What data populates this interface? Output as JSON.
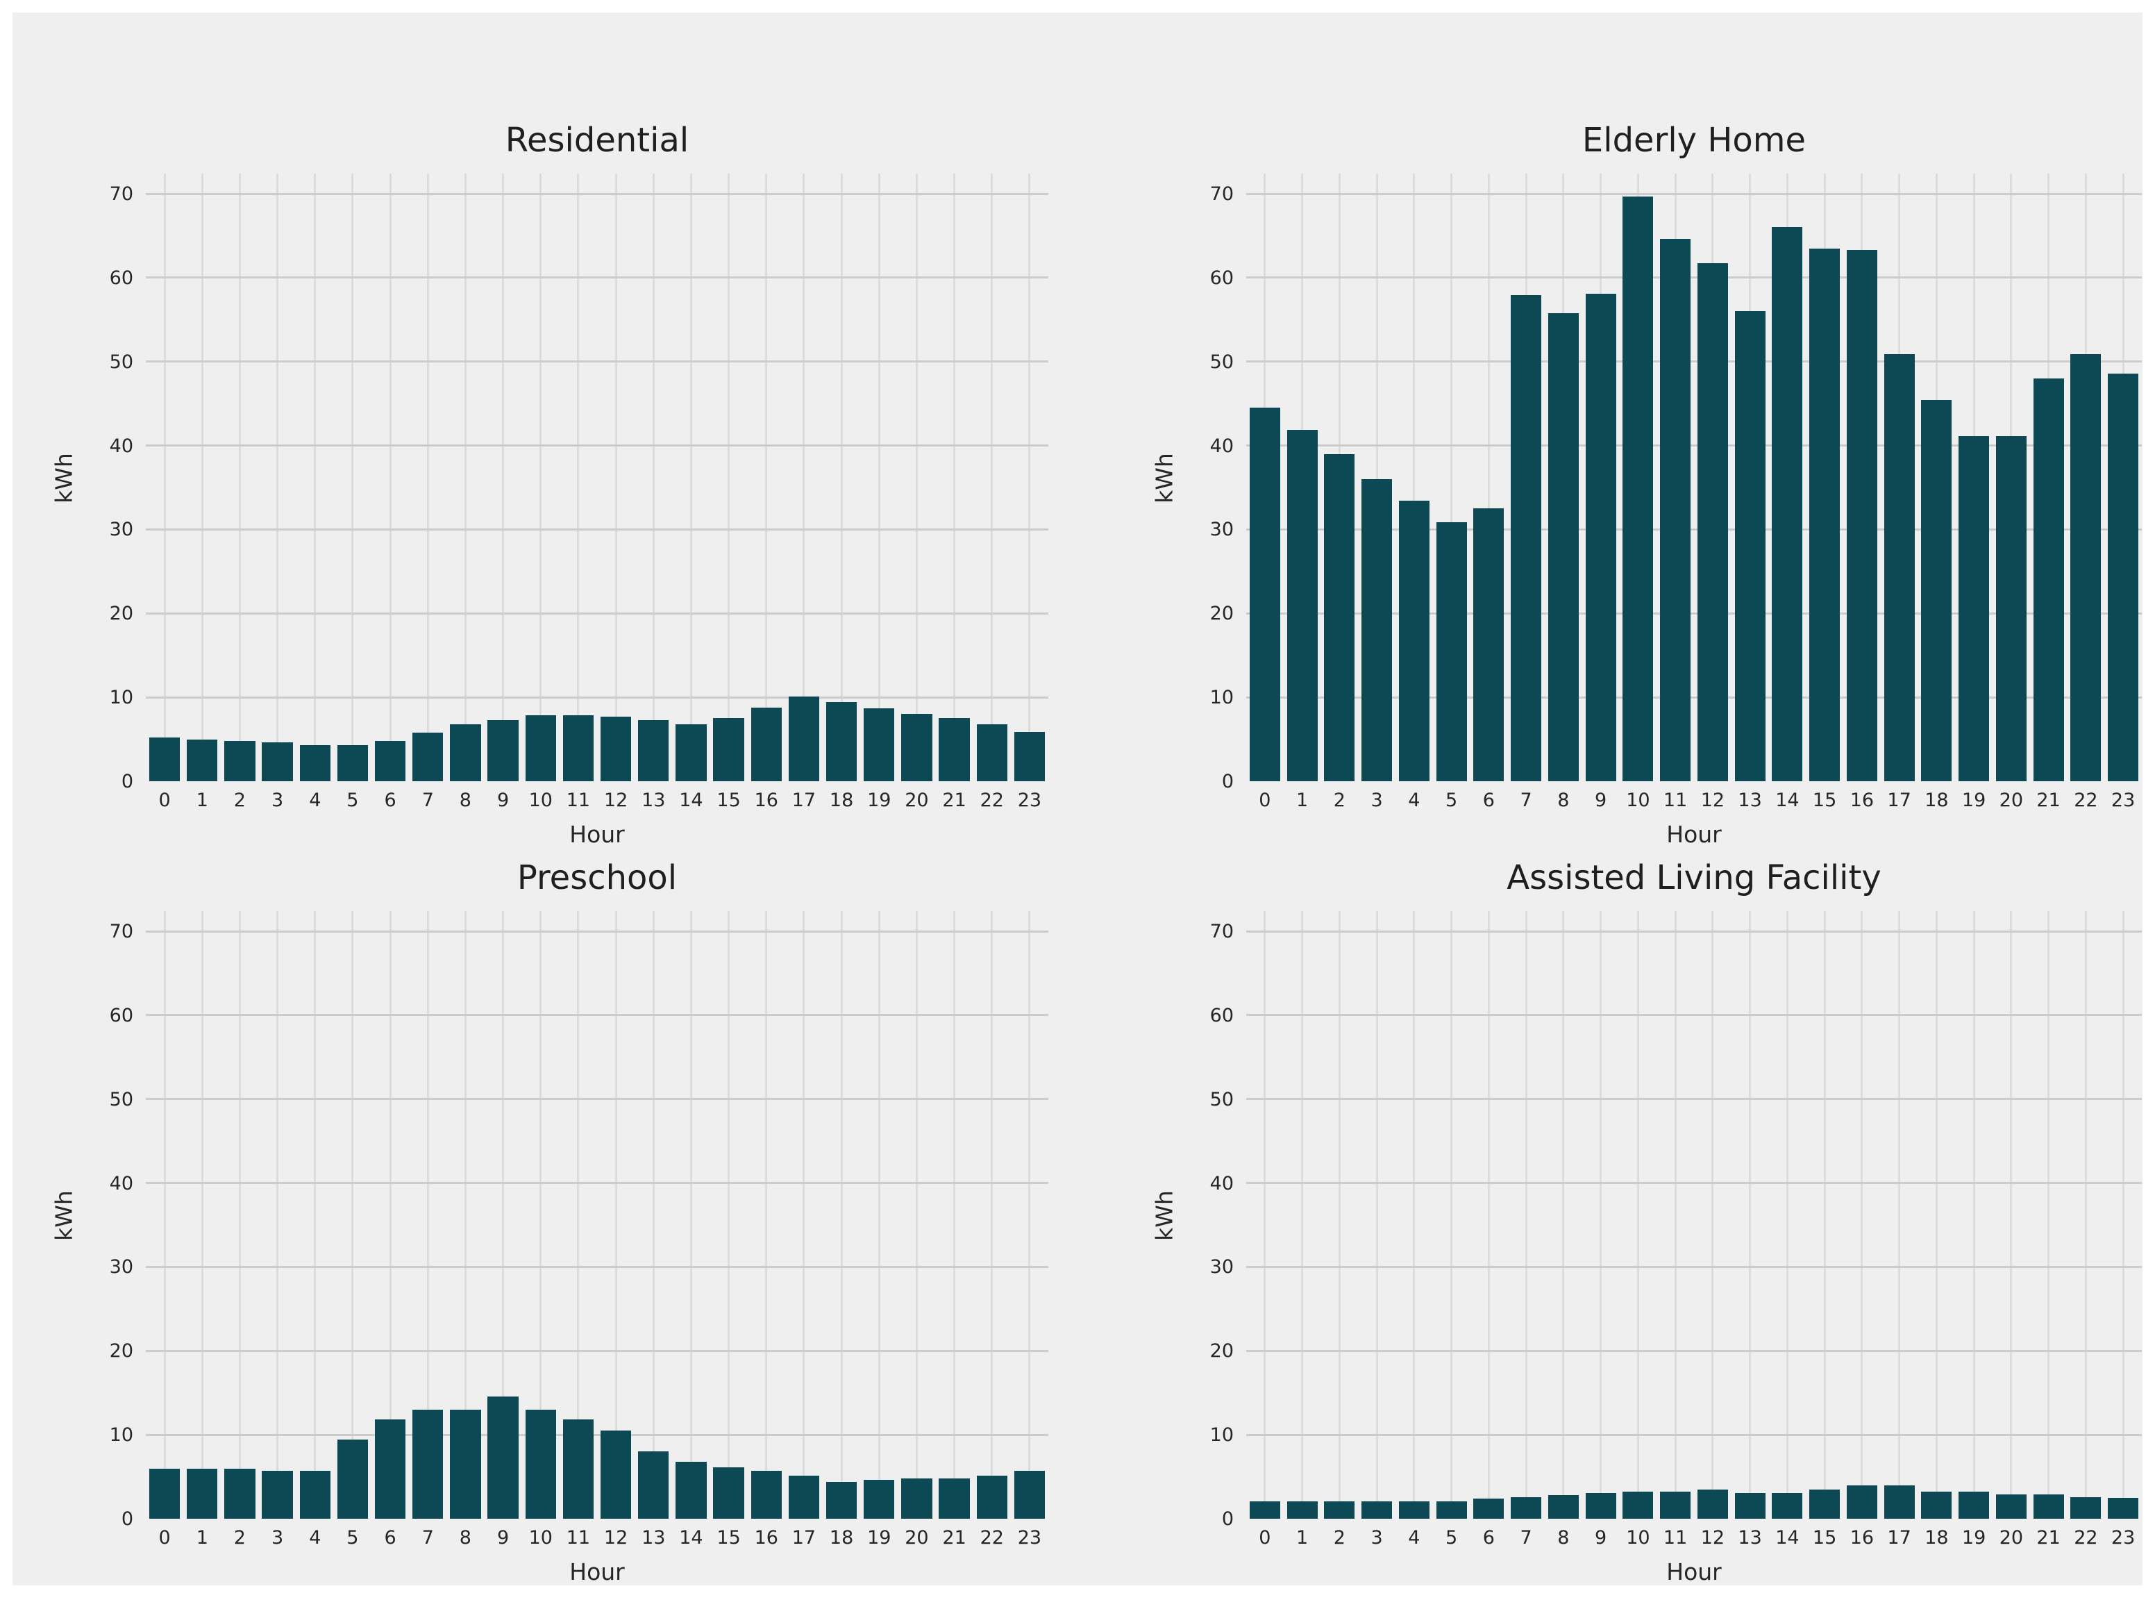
{
  "figure": {
    "background": "#efefef",
    "page_background": "#ffffff"
  },
  "colors": {
    "bar": "#0d4955",
    "grid_vertical": "#dcdcdc",
    "grid_horizontal": "#cccccc",
    "text": "#262626",
    "title_text": "#1f1f1f"
  },
  "axes_shared": {
    "ylabel": "kWh",
    "xlabel": "Hour",
    "yticks": [
      0,
      10,
      20,
      30,
      40,
      50,
      60,
      70
    ],
    "ylim": [
      0,
      72.4
    ],
    "xticklabels": [
      "0",
      "1",
      "2",
      "3",
      "4",
      "5",
      "6",
      "7",
      "8",
      "9",
      "10",
      "11",
      "12",
      "13",
      "14",
      "15",
      "16",
      "17",
      "18",
      "19",
      "20",
      "21",
      "22",
      "23"
    ]
  },
  "chart_data": [
    {
      "type": "bar",
      "title": "Residential",
      "slug": "residential",
      "xlabel": "Hour",
      "ylabel": "kWh",
      "categories": [
        "0",
        "1",
        "2",
        "3",
        "4",
        "5",
        "6",
        "7",
        "8",
        "9",
        "10",
        "11",
        "12",
        "13",
        "14",
        "15",
        "16",
        "17",
        "18",
        "19",
        "20",
        "21",
        "22",
        "23"
      ],
      "values": [
        5.2,
        5.0,
        4.8,
        4.6,
        4.3,
        4.3,
        4.8,
        5.8,
        6.8,
        7.3,
        7.9,
        7.9,
        7.7,
        7.3,
        6.8,
        7.5,
        8.8,
        10.1,
        9.4,
        8.7,
        8.0,
        7.5,
        6.8,
        5.9
      ],
      "ylim": [
        0,
        72.4
      ],
      "grid": true,
      "legend": false
    },
    {
      "type": "bar",
      "title": "Elderly Home",
      "slug": "elderly-home",
      "xlabel": "Hour",
      "ylabel": "kWh",
      "categories": [
        "0",
        "1",
        "2",
        "3",
        "4",
        "5",
        "6",
        "7",
        "8",
        "9",
        "10",
        "11",
        "12",
        "13",
        "14",
        "15",
        "16",
        "17",
        "18",
        "19",
        "20",
        "21",
        "22",
        "23"
      ],
      "values": [
        44.5,
        41.9,
        39.0,
        36.0,
        33.4,
        30.9,
        32.5,
        57.9,
        55.8,
        58.1,
        69.7,
        64.6,
        61.7,
        56.0,
        66.0,
        63.5,
        63.3,
        50.9,
        45.4,
        41.1,
        41.1,
        48.0,
        50.9,
        48.6
      ],
      "ylim": [
        0,
        72.4
      ],
      "grid": true,
      "legend": false
    },
    {
      "type": "bar",
      "title": "Preschool",
      "slug": "preschool",
      "xlabel": "Hour",
      "ylabel": "kWh",
      "categories": [
        "0",
        "1",
        "2",
        "3",
        "4",
        "5",
        "6",
        "7",
        "8",
        "9",
        "10",
        "11",
        "12",
        "13",
        "14",
        "15",
        "16",
        "17",
        "18",
        "19",
        "20",
        "21",
        "22",
        "23"
      ],
      "values": [
        6.0,
        6.0,
        6.0,
        5.7,
        5.7,
        9.4,
        11.8,
        13.0,
        13.0,
        14.6,
        13.0,
        11.8,
        10.5,
        8.0,
        6.8,
        6.1,
        5.7,
        5.1,
        4.4,
        4.6,
        4.8,
        4.8,
        5.1,
        5.7
      ],
      "ylim": [
        0,
        72.4
      ],
      "grid": true,
      "legend": false
    },
    {
      "type": "bar",
      "title": "Assisted Living Facility",
      "slug": "assisted-living-facility",
      "xlabel": "Hour",
      "ylabel": "kWh",
      "categories": [
        "0",
        "1",
        "2",
        "3",
        "4",
        "5",
        "6",
        "7",
        "8",
        "9",
        "10",
        "11",
        "12",
        "13",
        "14",
        "15",
        "16",
        "17",
        "18",
        "19",
        "20",
        "21",
        "22",
        "23"
      ],
      "values": [
        2.1,
        2.1,
        2.1,
        2.1,
        2.1,
        2.1,
        2.4,
        2.6,
        2.8,
        3.1,
        3.2,
        3.2,
        3.5,
        3.1,
        3.1,
        3.5,
        4.0,
        4.0,
        3.2,
        3.2,
        2.9,
        2.9,
        2.6,
        2.5
      ],
      "ylim": [
        0,
        72.4
      ],
      "grid": true,
      "legend": false
    }
  ]
}
